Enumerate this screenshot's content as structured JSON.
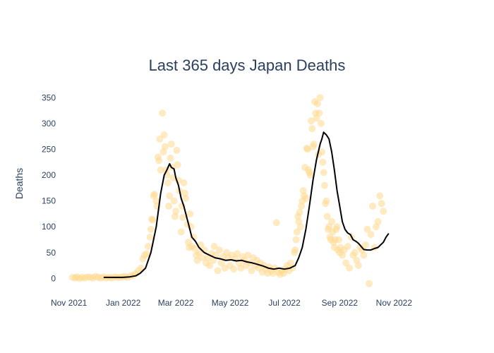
{
  "chart_data": {
    "type": "scatter",
    "title": "Last 365 days Japan Deaths",
    "xlabel": "",
    "ylabel": "Deaths",
    "x_tick_labels": [
      "Nov 2021",
      "Jan 2022",
      "Mar 2022",
      "May 2022",
      "Jul 2022",
      "Sep 2022",
      "Nov 2022"
    ],
    "x_tick_dates": [
      "2021-11-01",
      "2022-01-01",
      "2022-03-01",
      "2022-05-01",
      "2022-07-01",
      "2022-09-01",
      "2022-11-01"
    ],
    "y_ticks": [
      0,
      50,
      100,
      150,
      200,
      250,
      300,
      350
    ],
    "xlim": [
      "2021-10-18",
      "2022-12-04"
    ],
    "ylim": [
      -35,
      375
    ],
    "grid": false,
    "legend": "none",
    "colors": {
      "points": "#ffd98e",
      "line": "#000000",
      "text": "#2a3f5f"
    },
    "series": [
      {
        "type": "scatter",
        "points": [
          [
            "2021-11-05",
            2
          ],
          [
            "2021-11-08",
            1
          ],
          [
            "2021-11-10",
            3
          ],
          [
            "2021-11-13",
            0
          ],
          [
            "2021-11-16",
            2
          ],
          [
            "2021-11-19",
            1
          ],
          [
            "2021-11-22",
            3
          ],
          [
            "2021-11-25",
            2
          ],
          [
            "2021-11-28",
            1
          ],
          [
            "2021-12-01",
            4
          ],
          [
            "2021-12-04",
            2
          ],
          [
            "2021-12-07",
            1
          ],
          [
            "2021-12-10",
            3
          ],
          [
            "2021-12-13",
            1
          ],
          [
            "2021-12-16",
            2
          ],
          [
            "2021-12-19",
            1
          ],
          [
            "2021-12-22",
            3
          ],
          [
            "2021-12-25",
            2
          ],
          [
            "2021-12-28",
            2
          ],
          [
            "2021-12-31",
            3
          ],
          [
            "2022-01-03",
            4
          ],
          [
            "2022-01-06",
            2
          ],
          [
            "2022-01-09",
            5
          ],
          [
            "2022-01-12",
            6
          ],
          [
            "2022-01-15",
            9
          ],
          [
            "2022-01-18",
            15
          ],
          [
            "2022-01-21",
            20
          ],
          [
            "2022-01-23",
            38
          ],
          [
            "2022-01-25",
            45
          ],
          [
            "2022-01-27",
            48
          ],
          [
            "2022-01-29",
            62
          ],
          [
            "2022-01-31",
            80
          ],
          [
            "2022-02-01",
            95
          ],
          [
            "2022-02-02",
            115
          ],
          [
            "2022-02-03",
            113
          ],
          [
            "2022-02-04",
            160
          ],
          [
            "2022-02-05",
            163
          ],
          [
            "2022-02-07",
            150
          ],
          [
            "2022-02-08",
            140
          ],
          [
            "2022-02-09",
            235
          ],
          [
            "2022-02-10",
            228
          ],
          [
            "2022-02-11",
            270
          ],
          [
            "2022-02-12",
            210
          ],
          [
            "2022-02-14",
            320
          ],
          [
            "2022-02-15",
            245
          ],
          [
            "2022-02-16",
            278
          ],
          [
            "2022-02-17",
            255
          ],
          [
            "2022-02-18",
            210
          ],
          [
            "2022-02-19",
            200
          ],
          [
            "2022-02-20",
            185
          ],
          [
            "2022-02-21",
            140
          ],
          [
            "2022-02-22",
            160
          ],
          [
            "2022-02-23",
            233
          ],
          [
            "2022-02-24",
            260
          ],
          [
            "2022-02-25",
            215
          ],
          [
            "2022-02-26",
            195
          ],
          [
            "2022-02-27",
            150
          ],
          [
            "2022-02-28",
            120
          ],
          [
            "2022-03-01",
            130
          ],
          [
            "2022-03-02",
            248
          ],
          [
            "2022-03-03",
            220
          ],
          [
            "2022-03-04",
            190
          ],
          [
            "2022-03-05",
            170
          ],
          [
            "2022-03-07",
            90
          ],
          [
            "2022-03-08",
            140
          ],
          [
            "2022-03-09",
            118
          ],
          [
            "2022-03-10",
            185
          ],
          [
            "2022-03-11",
            165
          ],
          [
            "2022-03-12",
            155
          ],
          [
            "2022-03-14",
            105
          ],
          [
            "2022-03-15",
            70
          ],
          [
            "2022-03-16",
            60
          ],
          [
            "2022-03-17",
            125
          ],
          [
            "2022-03-18",
            100
          ],
          [
            "2022-03-19",
            62
          ],
          [
            "2022-03-21",
            80
          ],
          [
            "2022-03-22",
            58
          ],
          [
            "2022-03-24",
            45
          ],
          [
            "2022-03-25",
            35
          ],
          [
            "2022-03-27",
            50
          ],
          [
            "2022-03-29",
            65
          ],
          [
            "2022-03-31",
            40
          ],
          [
            "2022-04-02",
            55
          ],
          [
            "2022-04-04",
            30
          ],
          [
            "2022-04-06",
            40
          ],
          [
            "2022-04-08",
            25
          ],
          [
            "2022-04-10",
            48
          ],
          [
            "2022-04-12",
            35
          ],
          [
            "2022-04-13",
            62
          ],
          [
            "2022-04-15",
            45
          ],
          [
            "2022-04-17",
            15
          ],
          [
            "2022-04-19",
            55
          ],
          [
            "2022-04-21",
            30
          ],
          [
            "2022-04-23",
            42
          ],
          [
            "2022-04-25",
            20
          ],
          [
            "2022-04-27",
            50
          ],
          [
            "2022-04-29",
            40
          ],
          [
            "2022-05-01",
            25
          ],
          [
            "2022-05-03",
            45
          ],
          [
            "2022-05-05",
            18
          ],
          [
            "2022-05-07",
            38
          ],
          [
            "2022-05-09",
            48
          ],
          [
            "2022-05-11",
            30
          ],
          [
            "2022-05-13",
            20
          ],
          [
            "2022-05-15",
            42
          ],
          [
            "2022-05-17",
            35
          ],
          [
            "2022-05-19",
            25
          ],
          [
            "2022-05-21",
            45
          ],
          [
            "2022-05-23",
            30
          ],
          [
            "2022-05-25",
            15
          ],
          [
            "2022-05-27",
            40
          ],
          [
            "2022-05-29",
            25
          ],
          [
            "2022-05-31",
            35
          ],
          [
            "2022-06-02",
            20
          ],
          [
            "2022-06-04",
            30
          ],
          [
            "2022-06-06",
            12
          ],
          [
            "2022-06-08",
            25
          ],
          [
            "2022-06-10",
            18
          ],
          [
            "2022-06-12",
            10
          ],
          [
            "2022-06-14",
            22
          ],
          [
            "2022-06-16",
            15
          ],
          [
            "2022-06-18",
            10
          ],
          [
            "2022-06-20",
            20
          ],
          [
            "2022-06-22",
            108
          ],
          [
            "2022-06-24",
            12
          ],
          [
            "2022-06-26",
            8
          ],
          [
            "2022-06-28",
            15
          ],
          [
            "2022-06-30",
            10
          ],
          [
            "2022-07-02",
            18
          ],
          [
            "2022-07-04",
            25
          ],
          [
            "2022-07-06",
            15
          ],
          [
            "2022-07-08",
            30
          ],
          [
            "2022-07-10",
            20
          ],
          [
            "2022-07-12",
            50
          ],
          [
            "2022-07-13",
            55
          ],
          [
            "2022-07-14",
            75
          ],
          [
            "2022-07-15",
            90
          ],
          [
            "2022-07-16",
            120
          ],
          [
            "2022-07-17",
            110
          ],
          [
            "2022-07-18",
            128
          ],
          [
            "2022-07-19",
            100
          ],
          [
            "2022-07-20",
            140
          ],
          [
            "2022-07-21",
            150
          ],
          [
            "2022-07-22",
            170
          ],
          [
            "2022-07-23",
            160
          ],
          [
            "2022-07-24",
            215
          ],
          [
            "2022-07-25",
            155
          ],
          [
            "2022-07-26",
            252
          ],
          [
            "2022-07-27",
            250
          ],
          [
            "2022-07-28",
            210
          ],
          [
            "2022-07-29",
            205
          ],
          [
            "2022-07-30",
            200
          ],
          [
            "2022-07-31",
            305
          ],
          [
            "2022-08-01",
            290
          ],
          [
            "2022-08-02",
            255
          ],
          [
            "2022-08-03",
            260
          ],
          [
            "2022-08-04",
            342
          ],
          [
            "2022-08-05",
            320
          ],
          [
            "2022-08-06",
            310
          ],
          [
            "2022-08-07",
            338
          ],
          [
            "2022-08-08",
            240
          ],
          [
            "2022-08-09",
            320
          ],
          [
            "2022-08-10",
            350
          ],
          [
            "2022-08-11",
            300
          ],
          [
            "2022-08-12",
            245
          ],
          [
            "2022-08-13",
            225
          ],
          [
            "2022-08-14",
            205
          ],
          [
            "2022-08-15",
            180
          ],
          [
            "2022-08-16",
            145
          ],
          [
            "2022-08-17",
            150
          ],
          [
            "2022-08-18",
            120
          ],
          [
            "2022-08-19",
            95
          ],
          [
            "2022-08-20",
            100
          ],
          [
            "2022-08-21",
            80
          ],
          [
            "2022-08-22",
            75
          ],
          [
            "2022-08-23",
            110
          ],
          [
            "2022-08-24",
            90
          ],
          [
            "2022-08-25",
            70
          ],
          [
            "2022-08-26",
            60
          ],
          [
            "2022-08-27",
            75
          ],
          [
            "2022-08-28",
            95
          ],
          [
            "2022-08-29",
            100
          ],
          [
            "2022-08-30",
            55
          ],
          [
            "2022-08-31",
            75
          ],
          [
            "2022-09-01",
            50
          ],
          [
            "2022-09-02",
            60
          ],
          [
            "2022-09-04",
            45
          ],
          [
            "2022-09-06",
            55
          ],
          [
            "2022-09-08",
            30
          ],
          [
            "2022-09-10",
            62
          ],
          [
            "2022-09-12",
            20
          ],
          [
            "2022-09-14",
            80
          ],
          [
            "2022-09-16",
            45
          ],
          [
            "2022-09-18",
            50
          ],
          [
            "2022-09-20",
            35
          ],
          [
            "2022-09-22",
            25
          ],
          [
            "2022-09-24",
            60
          ],
          [
            "2022-09-26",
            55
          ],
          [
            "2022-09-28",
            45
          ],
          [
            "2022-09-30",
            65
          ],
          [
            "2022-10-02",
            95
          ],
          [
            "2022-10-04",
            -10
          ],
          [
            "2022-10-06",
            85
          ],
          [
            "2022-10-08",
            140
          ],
          [
            "2022-10-10",
            60
          ],
          [
            "2022-10-12",
            100
          ],
          [
            "2022-10-14",
            110
          ],
          [
            "2022-10-16",
            160
          ],
          [
            "2022-10-18",
            145
          ],
          [
            "2022-10-20",
            130
          ]
        ]
      },
      {
        "type": "line",
        "points": [
          [
            "2021-12-10",
            2
          ],
          [
            "2021-12-20",
            2
          ],
          [
            "2021-12-31",
            2
          ],
          [
            "2022-01-08",
            3
          ],
          [
            "2022-01-15",
            5
          ],
          [
            "2022-01-20",
            10
          ],
          [
            "2022-01-26",
            20
          ],
          [
            "2022-02-01",
            50
          ],
          [
            "2022-02-07",
            100
          ],
          [
            "2022-02-12",
            165
          ],
          [
            "2022-02-16",
            200
          ],
          [
            "2022-02-19",
            210
          ],
          [
            "2022-02-22",
            222
          ],
          [
            "2022-02-24",
            215
          ],
          [
            "2022-02-27",
            212
          ],
          [
            "2022-03-01",
            195
          ],
          [
            "2022-03-04",
            180
          ],
          [
            "2022-03-07",
            155
          ],
          [
            "2022-03-10",
            140
          ],
          [
            "2022-03-13",
            120
          ],
          [
            "2022-03-16",
            100
          ],
          [
            "2022-03-19",
            80
          ],
          [
            "2022-03-23",
            72
          ],
          [
            "2022-03-27",
            60
          ],
          [
            "2022-04-02",
            50
          ],
          [
            "2022-04-08",
            45
          ],
          [
            "2022-04-14",
            40
          ],
          [
            "2022-04-20",
            38
          ],
          [
            "2022-04-26",
            35
          ],
          [
            "2022-05-02",
            36
          ],
          [
            "2022-05-08",
            34
          ],
          [
            "2022-05-14",
            35
          ],
          [
            "2022-05-20",
            32
          ],
          [
            "2022-05-26",
            30
          ],
          [
            "2022-06-01",
            27
          ],
          [
            "2022-06-07",
            24
          ],
          [
            "2022-06-13",
            20
          ],
          [
            "2022-06-19",
            18
          ],
          [
            "2022-06-25",
            20
          ],
          [
            "2022-07-01",
            18
          ],
          [
            "2022-07-07",
            20
          ],
          [
            "2022-07-13",
            25
          ],
          [
            "2022-07-17",
            40
          ],
          [
            "2022-07-21",
            60
          ],
          [
            "2022-07-25",
            95
          ],
          [
            "2022-07-29",
            140
          ],
          [
            "2022-08-02",
            190
          ],
          [
            "2022-08-06",
            230
          ],
          [
            "2022-08-10",
            260
          ],
          [
            "2022-08-12",
            270
          ],
          [
            "2022-08-14",
            283
          ],
          [
            "2022-08-17",
            278
          ],
          [
            "2022-08-20",
            270
          ],
          [
            "2022-08-23",
            245
          ],
          [
            "2022-08-26",
            210
          ],
          [
            "2022-08-29",
            170
          ],
          [
            "2022-09-01",
            140
          ],
          [
            "2022-09-04",
            110
          ],
          [
            "2022-09-07",
            95
          ],
          [
            "2022-09-10",
            88
          ],
          [
            "2022-09-13",
            85
          ],
          [
            "2022-09-16",
            75
          ],
          [
            "2022-09-19",
            72
          ],
          [
            "2022-09-22",
            68
          ],
          [
            "2022-09-25",
            62
          ],
          [
            "2022-09-28",
            56
          ],
          [
            "2022-10-02",
            55
          ],
          [
            "2022-10-06",
            55
          ],
          [
            "2022-10-10",
            58
          ],
          [
            "2022-10-14",
            60
          ],
          [
            "2022-10-17",
            65
          ],
          [
            "2022-10-20",
            70
          ],
          [
            "2022-10-23",
            80
          ],
          [
            "2022-10-26",
            87
          ]
        ]
      }
    ]
  }
}
